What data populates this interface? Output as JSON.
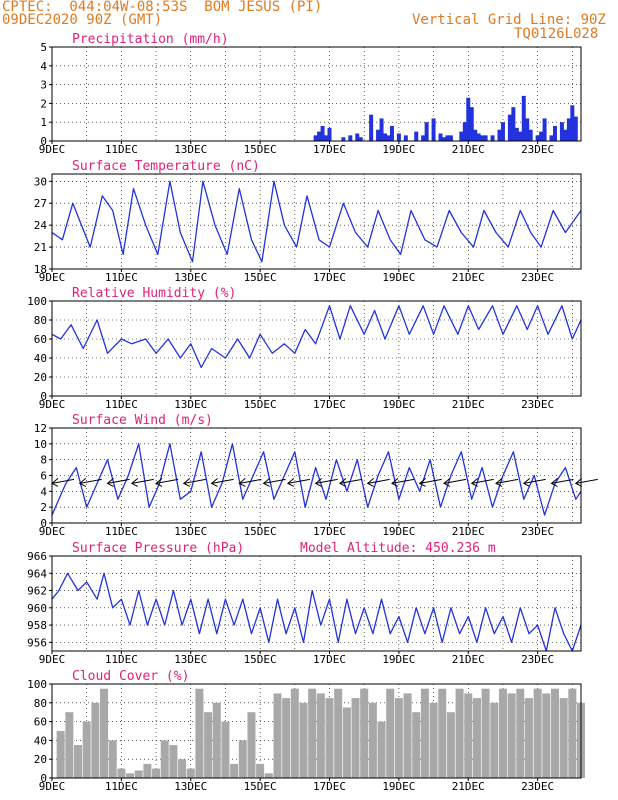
{
  "header": {
    "line1_left": "CPTEC:  044:04W-08:53S  BOM JESUS (PI)",
    "line2_left": "09DEC2020 90Z (GMT)",
    "line1_right": "Vertical Grid Line: 90Z",
    "line2_right": "TQ0126L028"
  },
  "colors": {
    "header": "#e07a22",
    "title": "#e0217a",
    "series": "#2233dd",
    "cloud": "#a8a8a8",
    "axis": "#000000"
  },
  "x_axis": {
    "range_days": [
      9,
      24.25
    ],
    "tick_days": [
      9,
      11,
      13,
      15,
      17,
      19,
      21,
      23
    ],
    "tick_labels": [
      "9DEC",
      "11DEC",
      "13DEC",
      "15DEC",
      "17DEC",
      "19DEC",
      "21DEC",
      "23DEC"
    ]
  },
  "chart_data": [
    {
      "type": "bar",
      "title": "Precipitation (mm/h)",
      "ylim": [
        0,
        5
      ],
      "yticks": [
        0,
        1,
        2,
        3,
        4,
        5
      ],
      "x": [
        16.6,
        16.7,
        16.8,
        16.9,
        17.0,
        17.4,
        17.6,
        17.8,
        17.9,
        18.2,
        18.4,
        18.5,
        18.6,
        18.7,
        18.8,
        19.0,
        19.2,
        19.5,
        19.7,
        19.8,
        20.0,
        20.2,
        20.3,
        20.4,
        20.5,
        20.8,
        20.9,
        21.0,
        21.1,
        21.2,
        21.3,
        21.4,
        21.5,
        21.7,
        21.9,
        22.0,
        22.2,
        22.3,
        22.4,
        22.5,
        22.6,
        22.7,
        22.8,
        23.0,
        23.1,
        23.2,
        23.4,
        23.5,
        23.7,
        23.8,
        23.9,
        24.0,
        24.1
      ],
      "values": [
        0.3,
        0.5,
        0.8,
        0.3,
        0.7,
        0.2,
        0.3,
        0.4,
        0.2,
        1.4,
        0.6,
        1.2,
        0.4,
        0.3,
        0.8,
        0.4,
        0.3,
        0.5,
        0.3,
        1.0,
        1.2,
        0.4,
        0.2,
        0.3,
        0.3,
        0.5,
        1.0,
        2.3,
        1.8,
        0.6,
        0.4,
        0.3,
        0.3,
        0.3,
        0.6,
        1.0,
        1.4,
        1.8,
        0.7,
        0.5,
        2.4,
        1.2,
        0.6,
        0.3,
        0.5,
        1.2,
        0.3,
        0.8,
        1.0,
        0.6,
        1.2,
        1.9,
        1.3
      ]
    },
    {
      "type": "line",
      "title": "Surface Temperature (nC)",
      "ylim": [
        18,
        31
      ],
      "yticks": [
        18,
        21,
        24,
        27,
        30
      ],
      "series": [
        {
          "x": [
            9.0,
            9.3,
            9.6,
            9.85,
            10.1,
            10.45,
            10.75,
            11.05,
            11.35,
            11.7,
            12.05,
            12.4,
            12.7,
            13.05,
            13.35,
            13.7,
            14.05,
            14.4,
            14.75,
            15.05,
            15.4,
            15.7,
            16.05,
            16.35,
            16.7,
            17.0,
            17.4,
            17.75,
            18.1,
            18.4,
            18.75,
            19.05,
            19.35,
            19.75,
            20.1,
            20.45,
            20.8,
            21.15,
            21.45,
            21.8,
            22.15,
            22.5,
            22.8,
            23.1,
            23.45,
            23.8,
            24.25
          ],
          "values": [
            23,
            22,
            27,
            24,
            21,
            28,
            26,
            20,
            29,
            24,
            20,
            30,
            23,
            19,
            30,
            24,
            20,
            29,
            22,
            19,
            30,
            24,
            21,
            28,
            22,
            21,
            27,
            23,
            21,
            26,
            22,
            20,
            26,
            22,
            21,
            26,
            23,
            21,
            26,
            23,
            21,
            26,
            23,
            21,
            26,
            23,
            26
          ]
        }
      ]
    },
    {
      "type": "line",
      "title": "Relative Humidity (%)",
      "ylim": [
        0,
        100
      ],
      "yticks": [
        0,
        20,
        40,
        60,
        80,
        100
      ],
      "series": [
        {
          "x": [
            9.0,
            9.25,
            9.55,
            9.9,
            10.3,
            10.6,
            11.0,
            11.3,
            11.7,
            12.0,
            12.35,
            12.7,
            13.0,
            13.3,
            13.6,
            14.0,
            14.35,
            14.7,
            15.0,
            15.35,
            15.7,
            16.0,
            16.3,
            16.6,
            17.0,
            17.3,
            17.6,
            18.0,
            18.3,
            18.6,
            19.0,
            19.3,
            19.7,
            20.0,
            20.3,
            20.7,
            21.0,
            21.3,
            21.7,
            22.0,
            22.4,
            22.7,
            23.0,
            23.3,
            23.7,
            24.0,
            24.25
          ],
          "values": [
            65,
            60,
            75,
            50,
            80,
            45,
            60,
            55,
            60,
            45,
            60,
            40,
            55,
            30,
            50,
            40,
            60,
            40,
            65,
            45,
            55,
            45,
            70,
            55,
            95,
            60,
            95,
            65,
            90,
            60,
            95,
            65,
            95,
            65,
            95,
            65,
            95,
            70,
            95,
            65,
            95,
            70,
            95,
            65,
            95,
            60,
            80
          ]
        }
      ]
    },
    {
      "type": "line",
      "title": "Surface Wind (m/s)",
      "ylim": [
        0,
        12
      ],
      "yticks": [
        0,
        2,
        4,
        6,
        8,
        10,
        12
      ],
      "series": [
        {
          "x": [
            9.0,
            9.2,
            9.4,
            9.7,
            10.0,
            10.3,
            10.6,
            10.9,
            11.2,
            11.5,
            11.8,
            12.1,
            12.4,
            12.7,
            13.0,
            13.3,
            13.6,
            13.9,
            14.2,
            14.5,
            14.8,
            15.1,
            15.4,
            15.7,
            16.0,
            16.3,
            16.6,
            16.9,
            17.2,
            17.5,
            17.8,
            18.1,
            18.4,
            18.7,
            19.0,
            19.3,
            19.6,
            19.9,
            20.2,
            20.5,
            20.8,
            21.1,
            21.4,
            21.7,
            22.0,
            22.3,
            22.6,
            22.9,
            23.2,
            23.5,
            23.8,
            24.1,
            24.25
          ],
          "values": [
            1,
            3,
            5,
            7,
            2,
            5,
            8,
            3,
            6,
            10,
            2,
            5,
            10,
            3,
            4,
            9,
            2,
            5,
            10,
            3,
            6,
            9,
            3,
            6,
            9,
            2,
            7,
            3,
            8,
            4,
            8,
            2,
            6,
            9,
            3,
            7,
            4,
            8,
            2,
            6,
            9,
            3,
            7,
            2,
            6,
            9,
            3,
            6,
            1,
            5,
            7,
            3,
            4
          ]
        }
      ],
      "arrows_x": [
        9.0,
        9.8,
        10.6,
        11.3,
        12.0,
        12.8,
        13.6,
        14.4,
        15.1,
        15.8,
        16.6,
        17.3,
        18.1,
        18.8,
        19.6,
        20.3,
        21.1,
        21.8,
        22.6,
        23.4,
        24.1
      ]
    },
    {
      "type": "line",
      "title": "Surface Pressure (hPa)",
      "annotation": "Model Altitude: 450.236 m",
      "ylim": [
        955,
        966
      ],
      "yticks": [
        956,
        958,
        960,
        962,
        964,
        966
      ],
      "series": [
        {
          "x": [
            9.0,
            9.2,
            9.45,
            9.75,
            10.0,
            10.3,
            10.5,
            10.75,
            11.0,
            11.25,
            11.5,
            11.75,
            12.0,
            12.25,
            12.5,
            12.75,
            13.0,
            13.25,
            13.5,
            13.75,
            14.0,
            14.25,
            14.5,
            14.75,
            15.0,
            15.25,
            15.5,
            15.75,
            16.0,
            16.25,
            16.5,
            16.75,
            17.0,
            17.25,
            17.5,
            17.75,
            18.0,
            18.25,
            18.5,
            18.75,
            19.0,
            19.25,
            19.5,
            19.75,
            20.0,
            20.25,
            20.5,
            20.75,
            21.0,
            21.25,
            21.5,
            21.75,
            22.0,
            22.25,
            22.5,
            22.75,
            23.0,
            23.25,
            23.5,
            23.75,
            24.0,
            24.25
          ],
          "values": [
            961,
            962,
            964,
            962,
            963,
            961,
            964,
            960,
            961,
            958,
            962,
            958,
            961,
            958,
            962,
            958,
            961,
            957,
            961,
            957,
            961,
            958,
            961,
            957,
            960,
            956,
            961,
            957,
            960,
            956,
            962,
            958,
            961,
            956,
            961,
            957,
            960,
            957,
            961,
            957,
            959,
            956,
            960,
            957,
            960,
            956,
            960,
            957,
            959,
            956,
            960,
            957,
            959,
            956,
            960,
            957,
            958,
            955,
            960,
            957,
            955,
            958
          ]
        }
      ]
    },
    {
      "type": "bar",
      "title": "Cloud Cover (%)",
      "ylim": [
        0,
        100
      ],
      "yticks": [
        0,
        20,
        40,
        60,
        80,
        100
      ],
      "x": [
        9.25,
        9.5,
        9.75,
        10.0,
        10.25,
        10.5,
        10.75,
        11.0,
        11.25,
        11.5,
        11.75,
        12.0,
        12.25,
        12.5,
        12.75,
        13.0,
        13.25,
        13.5,
        13.75,
        14.0,
        14.25,
        14.5,
        14.75,
        15.0,
        15.25,
        15.5,
        15.75,
        16.0,
        16.25,
        16.5,
        16.75,
        17.0,
        17.25,
        17.5,
        17.75,
        18.0,
        18.25,
        18.5,
        18.75,
        19.0,
        19.25,
        19.5,
        19.75,
        20.0,
        20.25,
        20.5,
        20.75,
        21.0,
        21.25,
        21.5,
        21.75,
        22.0,
        22.25,
        22.5,
        22.75,
        23.0,
        23.25,
        23.5,
        23.75,
        24.0,
        24.25
      ],
      "values": [
        50,
        70,
        35,
        60,
        80,
        95,
        40,
        10,
        5,
        8,
        15,
        10,
        40,
        35,
        20,
        10,
        95,
        70,
        80,
        60,
        15,
        40,
        70,
        15,
        5,
        90,
        85,
        95,
        80,
        95,
        90,
        85,
        95,
        75,
        85,
        95,
        80,
        60,
        95,
        85,
        90,
        70,
        95,
        80,
        95,
        70,
        95,
        90,
        85,
        95,
        80,
        95,
        90,
        95,
        85,
        95,
        90,
        95,
        85,
        95,
        80
      ]
    }
  ]
}
